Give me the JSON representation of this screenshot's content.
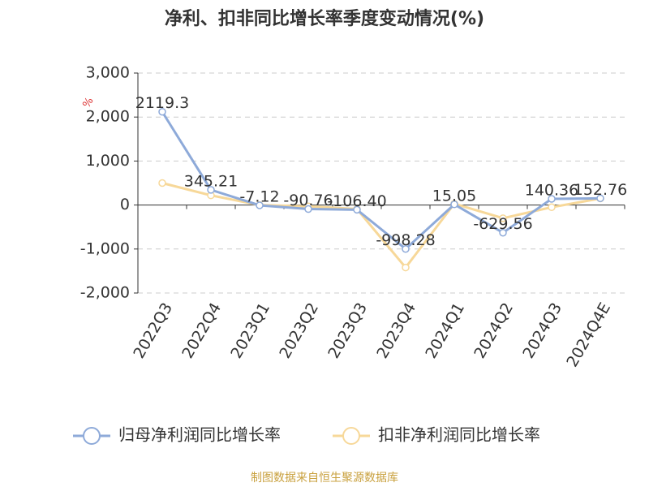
{
  "chart_data": {
    "type": "line",
    "title": "净利、扣非同比增长率季度变动情况(%)",
    "y_unit": "%",
    "categories": [
      "2022Q3",
      "2022Q4",
      "2023Q1",
      "2023Q2",
      "2023Q3",
      "2023Q4",
      "2024Q1",
      "2024Q2",
      "2024Q3",
      "2024Q4E"
    ],
    "series": [
      {
        "name": "归母净利润同比增长率",
        "color": "#8eaad9",
        "values": [
          2119.3,
          345.21,
          -7.12,
          -90.76,
          -106.4,
          -998.28,
          15.05,
          -629.56,
          140.36,
          152.76
        ],
        "value_labels": [
          "2119.3",
          "345.21",
          "-7.12",
          "-90.76",
          "-106.40",
          "-998.28",
          "15.05",
          "-629.56",
          "140.36",
          "152.76"
        ]
      },
      {
        "name": "扣非净利润同比增长率",
        "color": "#f7d899",
        "values": [
          500,
          220,
          0,
          -30,
          -90,
          -1420,
          30,
          -300,
          -50,
          150
        ]
      }
    ],
    "ylim": [
      -2000,
      3000
    ],
    "yticks": [
      {
        "value": -2000,
        "label": "-2,000"
      },
      {
        "value": -1000,
        "label": "-1,000"
      },
      0,
      {
        "value": 1000,
        "label": "1,000"
      },
      {
        "value": 2000,
        "label": "2,000"
      },
      {
        "value": 3000,
        "label": "3,000"
      }
    ],
    "grid": true,
    "source": "制图数据来自恒生聚源数据库"
  }
}
